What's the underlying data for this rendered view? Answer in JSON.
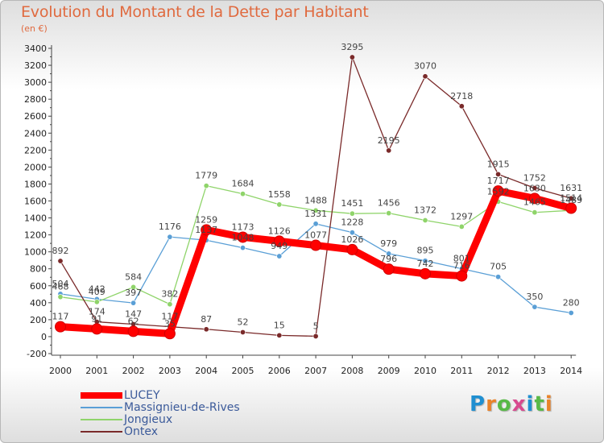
{
  "page": {
    "title": "Evolution du Montant de la Dette par Habitant",
    "subtitle": "(en €)",
    "brand": "Proxiti"
  },
  "colors": {
    "title": "#e06a3f",
    "legend_text": "#3b5a9a",
    "axis": "#444444",
    "grid": "#cfcfcf",
    "brand_letters": [
      "#1f8fd1",
      "#e9832a",
      "#58b947",
      "#d84a8f",
      "#1f8fd1",
      "#58b947",
      "#e9832a"
    ]
  },
  "chart_data": {
    "type": "line",
    "title": "Evolution du Montant de la Dette par Habitant",
    "subtitle": "(en €)",
    "xlabel": "",
    "ylabel": "",
    "x": [
      "2000",
      "2001",
      "2002",
      "2003",
      "2004",
      "2005",
      "2006",
      "2007",
      "2008",
      "2009",
      "2010",
      "2011",
      "2012",
      "2013",
      "2014"
    ],
    "ylim": [
      -200,
      3400
    ],
    "yticks": [
      -200,
      0,
      200,
      400,
      600,
      800,
      1000,
      1200,
      1400,
      1600,
      1800,
      2000,
      2200,
      2400,
      2600,
      2800,
      3000,
      3200,
      3400
    ],
    "grid": false,
    "legend_position": "bottom-left",
    "series": [
      {
        "name": "LUCEY",
        "color": "#ff0000",
        "values": [
          117,
          91,
          62,
          35,
          1259,
          1173,
          1126,
          1077,
          1026,
          796,
          742,
          716,
          1717,
          1630,
          1514
        ],
        "labels": [
          "117",
          "91",
          "62",
          "35",
          "1259",
          "1173",
          "1126",
          "1077",
          "1026",
          "796",
          "742",
          "716",
          "1717",
          "1630",
          "1514"
        ]
      },
      {
        "name": "Massignieu-de-Rives",
        "color": "#5a9fd6",
        "values": [
          504,
          442,
          397,
          1176,
          1137,
          1048,
          949,
          1331,
          1228,
          979,
          895,
          801,
          705,
          350,
          280
        ],
        "labels": [
          "504",
          "442",
          "397",
          "1176",
          "1137",
          "1048",
          "949",
          "1331",
          "1228",
          "979",
          "895",
          "801",
          "705",
          "350",
          "280"
        ]
      },
      {
        "name": "Jongieux",
        "color": "#8fd46a",
        "values": [
          468,
          409,
          584,
          382,
          1779,
          1684,
          1558,
          1488,
          1451,
          1456,
          1372,
          1297,
          1592,
          1465,
          1489
        ],
        "labels": [
          "468",
          "409",
          "584",
          "382",
          "1779",
          "1684",
          "1558",
          "1488",
          "1451",
          "1456",
          "1372",
          "1297",
          "1592",
          "1465",
          "1489"
        ]
      },
      {
        "name": "Ontex",
        "color": "#7a2a2a",
        "values": [
          892,
          174,
          147,
          117,
          87,
          52,
          15,
          5,
          3295,
          2195,
          3070,
          2718,
          1915,
          1752,
          1631
        ],
        "labels": [
          "892",
          "174",
          "147",
          "117",
          "87",
          "52",
          "15",
          "5",
          "3295",
          "2195",
          "3070",
          "2718",
          "1915",
          "1752",
          "1631"
        ]
      }
    ]
  }
}
